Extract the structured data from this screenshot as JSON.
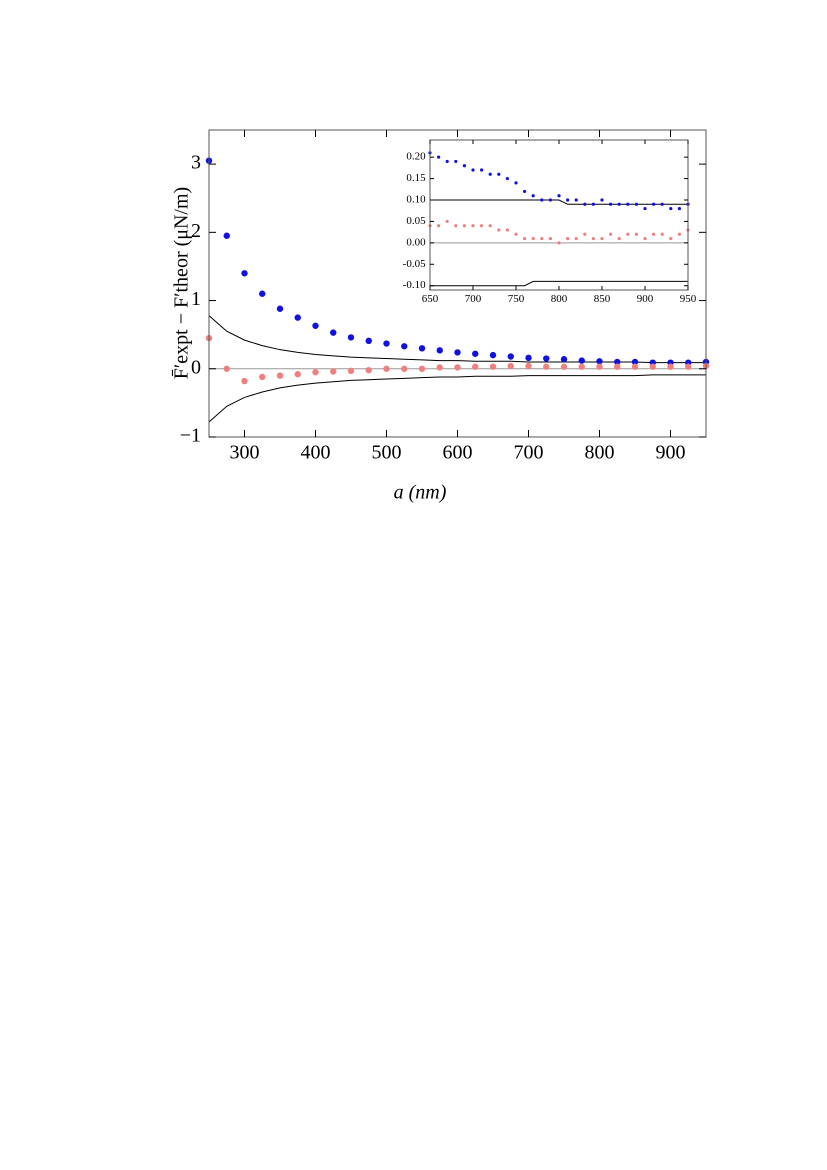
{
  "chart_data": [
    {
      "type": "scatter",
      "x_label": "a (nm)",
      "y_label": "F̄′expt − F′theor (μN/m)",
      "x": [
        250,
        275,
        300,
        325,
        350,
        375,
        400,
        425,
        450,
        475,
        500,
        525,
        550,
        575,
        600,
        625,
        650,
        675,
        700,
        725,
        750,
        775,
        800,
        825,
        850,
        875,
        900,
        925,
        950
      ],
      "series": [
        {
          "color": "#1010e0",
          "kind": "points",
          "values": [
            3.05,
            1.95,
            1.4,
            1.1,
            0.88,
            0.75,
            0.63,
            0.53,
            0.46,
            0.41,
            0.37,
            0.33,
            0.3,
            0.27,
            0.24,
            0.22,
            0.2,
            0.18,
            0.16,
            0.15,
            0.14,
            0.12,
            0.11,
            0.1,
            0.1,
            0.09,
            0.09,
            0.09,
            0.1
          ]
        },
        {
          "color": "#f08080",
          "kind": "points",
          "values": [
            0.45,
            0.0,
            -0.18,
            -0.12,
            -0.1,
            -0.08,
            -0.05,
            -0.04,
            -0.03,
            -0.02,
            0.0,
            0.0,
            0.0,
            0.02,
            0.02,
            0.03,
            0.03,
            0.04,
            0.04,
            0.03,
            0.03,
            0.03,
            0.03,
            0.03,
            0.03,
            0.03,
            0.03,
            0.03,
            0.04
          ]
        },
        {
          "color": "#000000",
          "kind": "line",
          "values": [
            0.78,
            0.55,
            0.42,
            0.34,
            0.28,
            0.24,
            0.21,
            0.19,
            0.17,
            0.16,
            0.15,
            0.14,
            0.13,
            0.12,
            0.12,
            0.11,
            0.11,
            0.11,
            0.1,
            0.1,
            0.1,
            0.1,
            0.1,
            0.1,
            0.1,
            0.09,
            0.09,
            0.09,
            0.09
          ]
        },
        {
          "color": "#000000",
          "kind": "line",
          "values": [
            -0.78,
            -0.55,
            -0.42,
            -0.34,
            -0.28,
            -0.24,
            -0.21,
            -0.19,
            -0.17,
            -0.16,
            -0.15,
            -0.14,
            -0.13,
            -0.12,
            -0.12,
            -0.11,
            -0.11,
            -0.11,
            -0.1,
            -0.1,
            -0.1,
            -0.1,
            -0.1,
            -0.1,
            -0.1,
            -0.09,
            -0.09,
            -0.09,
            -0.09
          ]
        }
      ],
      "xlim": [
        250,
        950
      ],
      "xticks": [
        300,
        400,
        500,
        600,
        700,
        800,
        900
      ],
      "ylim": [
        -1,
        3.5
      ],
      "yticks": [
        {
          "value": -1,
          "label": "−1"
        },
        0,
        1,
        2,
        3
      ]
    },
    {
      "type": "scatter",
      "x": [
        650,
        660,
        670,
        680,
        690,
        700,
        710,
        720,
        730,
        740,
        750,
        760,
        770,
        780,
        790,
        800,
        810,
        820,
        830,
        840,
        850,
        860,
        870,
        880,
        890,
        900,
        910,
        920,
        930,
        940,
        950
      ],
      "series": [
        {
          "color": "#1010e0",
          "kind": "points",
          "values": [
            0.21,
            0.2,
            0.19,
            0.19,
            0.18,
            0.17,
            0.17,
            0.16,
            0.16,
            0.15,
            0.14,
            0.12,
            0.11,
            0.1,
            0.1,
            0.11,
            0.1,
            0.1,
            0.09,
            0.09,
            0.1,
            0.09,
            0.09,
            0.09,
            0.09,
            0.08,
            0.09,
            0.09,
            0.08,
            0.08,
            0.09
          ]
        },
        {
          "color": "#f08080",
          "kind": "points",
          "values": [
            0.04,
            0.04,
            0.05,
            0.04,
            0.04,
            0.04,
            0.04,
            0.04,
            0.03,
            0.03,
            0.02,
            0.01,
            0.01,
            0.01,
            0.01,
            0.0,
            0.01,
            0.01,
            0.02,
            0.01,
            0.01,
            0.02,
            0.01,
            0.02,
            0.02,
            0.01,
            0.02,
            0.02,
            0.01,
            0.02,
            0.03
          ]
        },
        {
          "color": "#000000",
          "kind": "line",
          "values": [
            0.1,
            0.1,
            0.1,
            0.1,
            0.1,
            0.1,
            0.1,
            0.1,
            0.1,
            0.1,
            0.1,
            0.1,
            0.1,
            0.1,
            0.1,
            0.1,
            0.09,
            0.09,
            0.09,
            0.09,
            0.09,
            0.09,
            0.09,
            0.09,
            0.09,
            0.09,
            0.09,
            0.09,
            0.09,
            0.09,
            0.09
          ]
        },
        {
          "color": "#000000",
          "kind": "line",
          "values": [
            -0.1,
            -0.1,
            -0.1,
            -0.1,
            -0.1,
            -0.1,
            -0.1,
            -0.1,
            -0.1,
            -0.1,
            -0.1,
            -0.1,
            -0.09,
            -0.09,
            -0.09,
            -0.09,
            -0.09,
            -0.09,
            -0.09,
            -0.09,
            -0.09,
            -0.09,
            -0.09,
            -0.09,
            -0.09,
            -0.09,
            -0.09,
            -0.09,
            -0.09,
            -0.09,
            -0.09
          ]
        }
      ],
      "xlim": [
        650,
        950
      ],
      "xticks": [
        650,
        700,
        750,
        800,
        850,
        900,
        950
      ],
      "ylim": [
        -0.11,
        0.24
      ],
      "yticks": [
        {
          "value": -0.1,
          "label": "-0.10"
        },
        -0.05,
        {
          "value": 0,
          "label": "0.00"
        },
        0.05,
        {
          "value": 0.1,
          "label": "0.10"
        },
        0.15,
        {
          "value": 0.2,
          "label": "0.20"
        }
      ]
    }
  ]
}
